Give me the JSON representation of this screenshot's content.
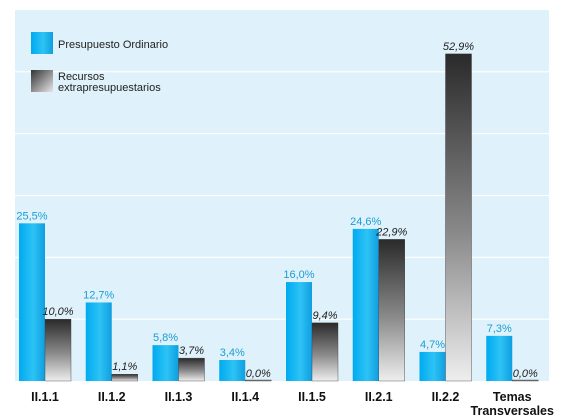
{
  "chart_data": {
    "type": "bar",
    "categories": [
      "II.1.1",
      "II.1.2",
      "II.1.3",
      "II.1.4",
      "II.1.5",
      "II.2.1",
      "II.2.2",
      [
        "Temas",
        "Transversales"
      ]
    ],
    "series": [
      {
        "name": "Presupuesto Ordinario",
        "values": [
          25.5,
          12.7,
          5.8,
          3.4,
          16.0,
          24.6,
          4.7,
          7.3
        ],
        "labels": [
          "25,5%",
          "12,7%",
          "5,8%",
          "3,4%",
          "16,0%",
          "24,6%",
          "4,7%",
          "7,3%"
        ],
        "color": "#1ab4ec"
      },
      {
        "name": "Recursos extrapresupuestarios",
        "name_lines": [
          "Recursos",
          "extrapresupuestarios"
        ],
        "values": [
          10.0,
          1.1,
          3.7,
          0.0,
          9.4,
          22.9,
          52.9,
          0.0
        ],
        "labels": [
          "10,0%",
          "1,1%",
          "3,7%",
          "0,0%",
          "9,4%",
          "22,9%",
          "52,9%",
          "0,0%"
        ],
        "color": "#444444"
      }
    ],
    "ylim": [
      0,
      60
    ],
    "grid": true,
    "legend": "top-left",
    "colors": {
      "plot_background": "#dff1fa",
      "gridline": "#ffffff",
      "ordinary_label": "#1a9ed6",
      "extra_label": "#222222"
    }
  }
}
